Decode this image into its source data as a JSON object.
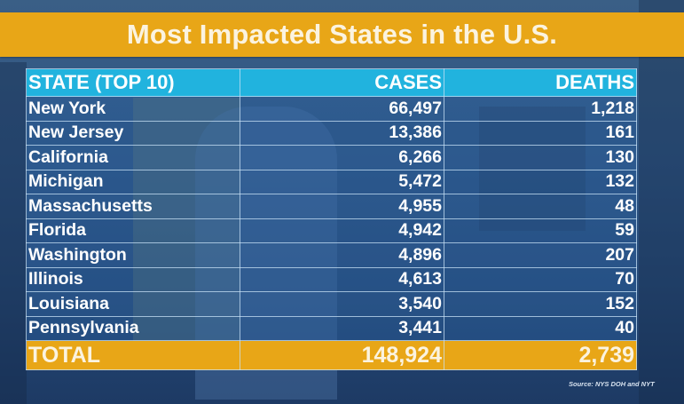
{
  "title": "Most Impacted States in the U.S.",
  "table": {
    "headers": [
      "STATE (TOP 10)",
      "CASES",
      "DEATHS"
    ],
    "rows": [
      {
        "state": "New York",
        "cases": "66,497",
        "deaths": "1,218"
      },
      {
        "state": "New Jersey",
        "cases": "13,386",
        "deaths": "161"
      },
      {
        "state": "California",
        "cases": "6,266",
        "deaths": "130"
      },
      {
        "state": "Michigan",
        "cases": "5,472",
        "deaths": "132"
      },
      {
        "state": "Massachusetts",
        "cases": "4,955",
        "deaths": "48"
      },
      {
        "state": "Florida",
        "cases": "4,942",
        "deaths": "59"
      },
      {
        "state": "Washington",
        "cases": "4,896",
        "deaths": "207"
      },
      {
        "state": "Illinois",
        "cases": "4,613",
        "deaths": "70"
      },
      {
        "state": "Louisiana",
        "cases": "3,540",
        "deaths": "152"
      },
      {
        "state": "Pennsylvania",
        "cases": "3,441",
        "deaths": "40"
      }
    ],
    "total": {
      "label": "TOTAL",
      "cases": "148,924",
      "deaths": "2,739"
    }
  },
  "source": "Source: NYS DOH and NYT",
  "colors": {
    "banner": "#e8a617",
    "header": "#21b3de",
    "background": "#2e5584"
  }
}
